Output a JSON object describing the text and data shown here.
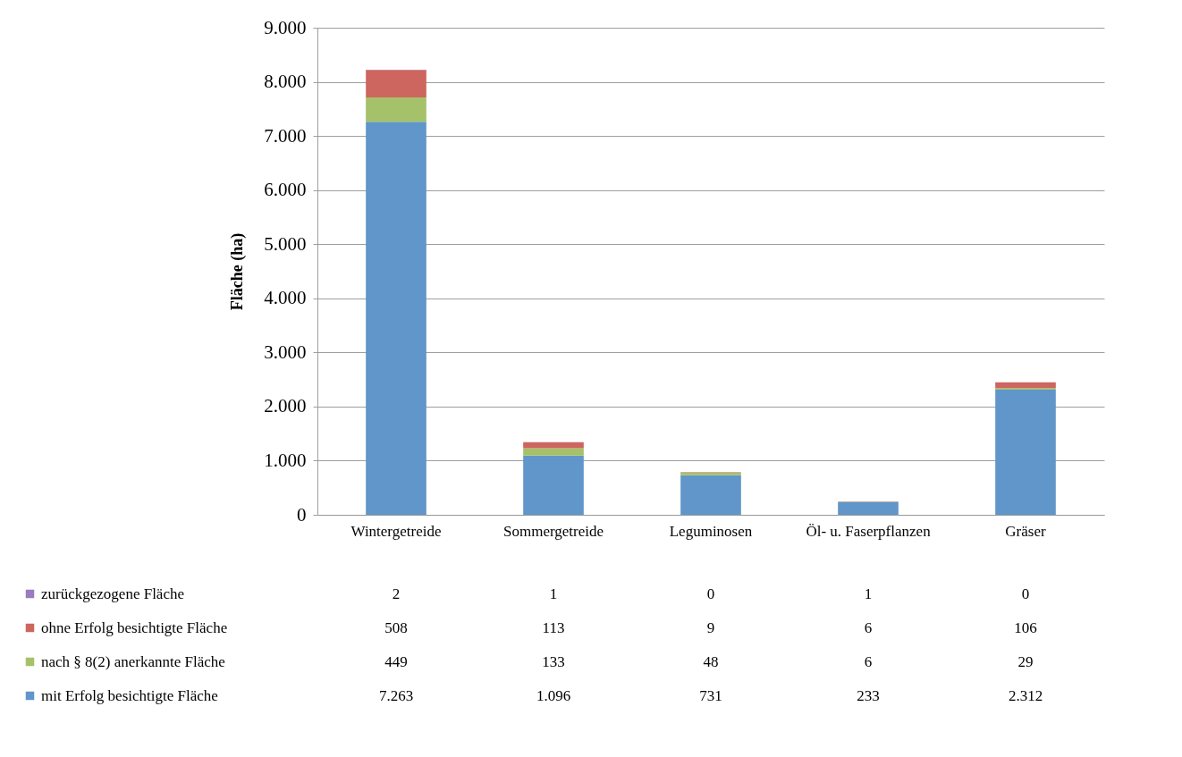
{
  "chart_data": {
    "type": "bar",
    "stacked": true,
    "ylabel": "Fläche (ha)",
    "categories": [
      "Wintergetreide",
      "Sommergetreide",
      "Leguminosen",
      "Öl- u. Faserpflanzen",
      "Gräser"
    ],
    "series": [
      {
        "name": "mit Erfolg besichtigte  Fläche",
        "color": "#6096c9",
        "values": [
          7263,
          1096,
          731,
          233,
          2312
        ],
        "value_labels": [
          "7.263",
          "1.096",
          "731",
          "233",
          "2.312"
        ]
      },
      {
        "name": "nach § 8(2) anerkannte Fläche",
        "color": "#a5c26a",
        "values": [
          449,
          133,
          48,
          6,
          29
        ],
        "value_labels": [
          "449",
          "133",
          "48",
          "6",
          "29"
        ]
      },
      {
        "name": "ohne Erfolg besichtigte Fläche",
        "color": "#cd665f",
        "values": [
          508,
          113,
          9,
          6,
          106
        ],
        "value_labels": [
          "508",
          "113",
          "9",
          "6",
          "106"
        ]
      },
      {
        "name": "zurückgezogene  Fläche",
        "color": "#9a7dbd",
        "values": [
          2,
          1,
          0,
          1,
          0
        ],
        "value_labels": [
          "2",
          "1",
          "0",
          "1",
          "0"
        ]
      }
    ],
    "ylim": [
      0,
      9000
    ],
    "yticks": [
      0,
      {
        "value": 1000,
        "label": "1.000"
      },
      {
        "value": 2000,
        "label": "2.000"
      },
      {
        "value": 3000,
        "label": "3.000"
      },
      {
        "value": 4000,
        "label": "4.000"
      },
      {
        "value": 5000,
        "label": "5.000"
      },
      {
        "value": 6000,
        "label": "6.000"
      },
      {
        "value": 7000,
        "label": "7.000"
      },
      {
        "value": 8000,
        "label": "8.000"
      },
      {
        "value": 9000,
        "label": "9.000"
      }
    ],
    "grid": "y",
    "legend": "bottom left"
  }
}
